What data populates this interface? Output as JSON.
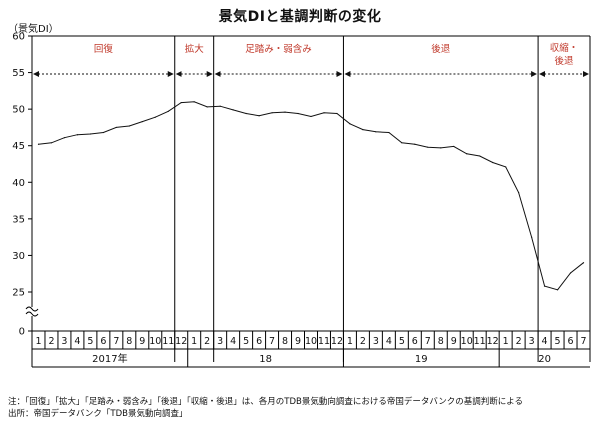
{
  "title": "景気DIと基調判断の変化",
  "unit_label": "（景気DI）",
  "notes": {
    "line1": "注：「回復」「拡大」「足踏み・弱含み」「後退」「収縮・後退」は、各月のTDB景気動向調査における帝国データバンクの基調判断による",
    "line2": "出所：帝国データバンク「TDB景気動向調査」"
  },
  "colors": {
    "phase_label": "#c0392b",
    "line": "#111111",
    "axis": "#000000"
  },
  "chart_data": {
    "type": "line",
    "title": "景気DIと基調判断の変化",
    "ylabel": "（景気DI）",
    "ylim": [
      25,
      60
    ],
    "y_axis_break": true,
    "y_ticks": [
      0,
      25,
      30,
      35,
      40,
      45,
      50,
      55,
      60
    ],
    "grid": false,
    "month_labels": [
      "1",
      "2",
      "3",
      "4",
      "5",
      "6",
      "7",
      "8",
      "9",
      "10",
      "11",
      "12",
      "1",
      "2",
      "3",
      "4",
      "5",
      "6",
      "7",
      "8",
      "9",
      "10",
      "11",
      "12",
      "1",
      "2",
      "3",
      "4",
      "5",
      "6",
      "7",
      "8",
      "9",
      "10",
      "11",
      "12",
      "1",
      "2",
      "3",
      "4",
      "5",
      "6",
      "7"
    ],
    "year_labels": [
      {
        "label": "2017年",
        "start": 0,
        "end": 11
      },
      {
        "label": "18",
        "start": 12,
        "end": 23
      },
      {
        "label": "19",
        "start": 24,
        "end": 35
      },
      {
        "label": "20",
        "start": 36,
        "end": 42
      }
    ],
    "phases": [
      {
        "label": "回復",
        "start": 0,
        "end": 10
      },
      {
        "label": "拡大",
        "start": 11,
        "end": 13
      },
      {
        "label": "足踏み・弱含み",
        "start": 14,
        "end": 23
      },
      {
        "label": "後退",
        "start": 24,
        "end": 38
      },
      {
        "label": "収縮・後退",
        "start": 39,
        "end": 42
      }
    ],
    "series": [
      {
        "values": [
          45.2,
          45.4,
          46.1,
          46.5,
          46.6,
          46.8,
          47.5,
          47.7,
          48.3,
          48.9,
          49.7,
          50.9,
          51.0,
          50.3,
          50.4,
          49.9,
          49.4,
          49.1,
          49.5,
          49.6,
          49.4,
          49.0,
          49.5,
          49.4,
          48.0,
          47.2,
          46.9,
          46.8,
          45.4,
          45.2,
          44.8,
          44.7,
          44.9,
          43.9,
          43.6,
          42.7,
          42.1,
          38.6,
          32.5,
          25.8,
          25.3,
          27.6,
          29.0
        ]
      }
    ]
  }
}
